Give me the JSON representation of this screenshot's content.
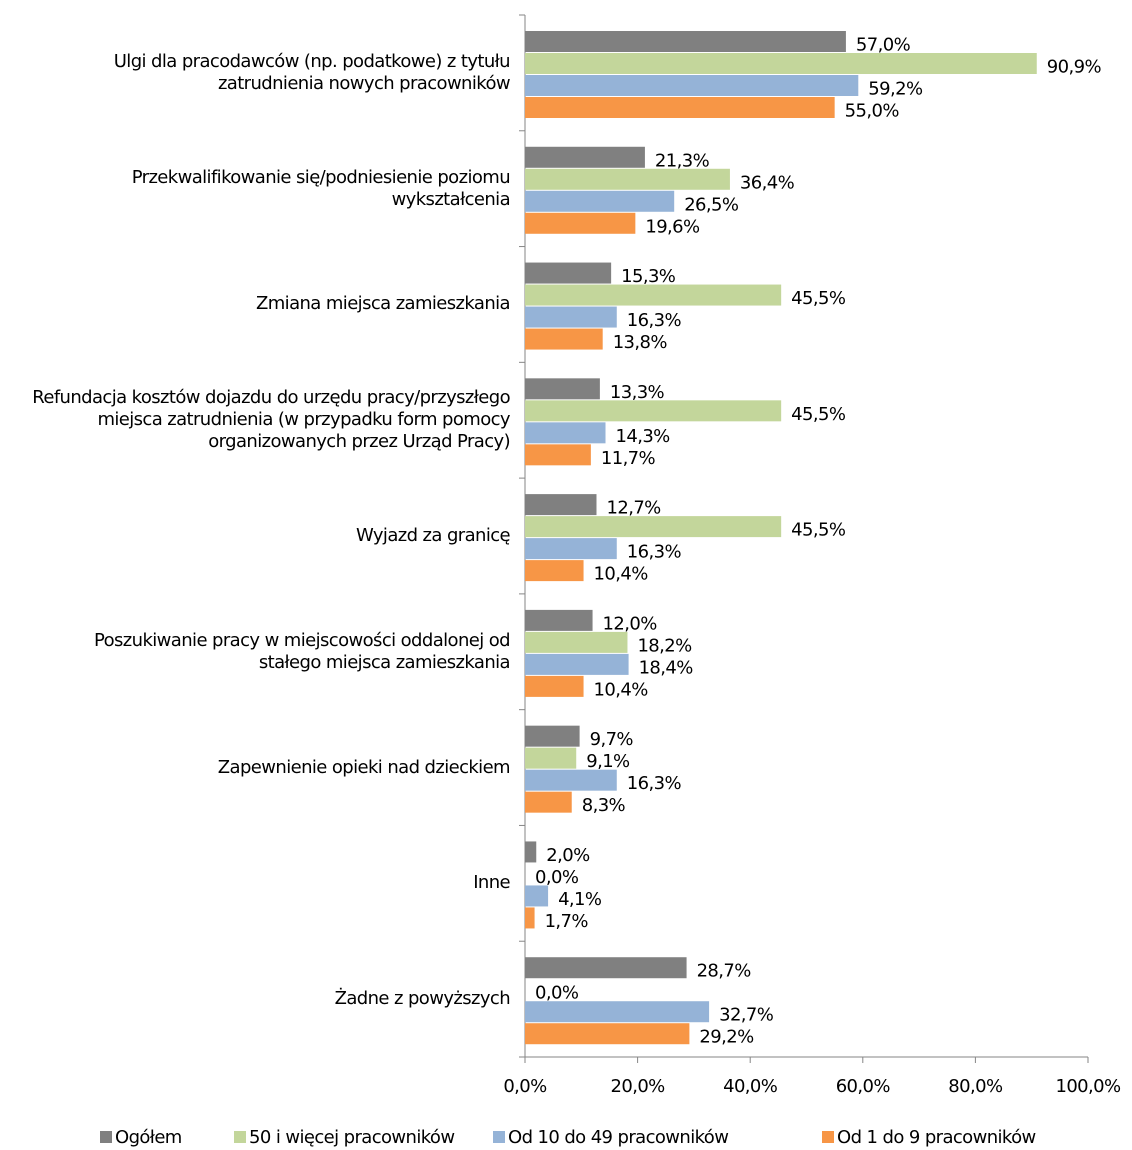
{
  "chart_data": {
    "type": "hbar",
    "categories": [
      "Ulgi dla pracodawców (np. podatkowe) z tytułu zatrudnienia nowych pracowników",
      "Przekwalifikowanie się/podniesienie poziomu wykształcenia",
      "Zmiana miejsca zamieszkania",
      "Refundacja kosztów dojazdu do urzędu pracy/przyszłego miejsca zatrudnienia (w przypadku form pomocy organizowanych przez Urząd Pracy)",
      "Wyjazd za granicę",
      "Poszukiwanie pracy w miejscowości oddalonej od stałego miejsca zamieszkania",
      "Zapewnienie opieki nad dzieckiem",
      "Inne",
      "Żadne z powyższych"
    ],
    "series": [
      {
        "name": "Ogółem",
        "color": "#808080",
        "values": [
          57.0,
          21.3,
          15.3,
          13.3,
          12.7,
          12.0,
          9.7,
          2.0,
          28.7
        ],
        "value_labels": [
          "57,0%",
          "21,3%",
          "15,3%",
          "13,3%",
          "12,7%",
          "12,0%",
          "9,7%",
          "2,0%",
          "28,7%"
        ]
      },
      {
        "name": "50 i więcej pracowników",
        "color": "#c3d69b",
        "values": [
          90.9,
          36.4,
          45.5,
          45.5,
          45.5,
          18.2,
          9.1,
          0.0,
          0.0
        ],
        "value_labels": [
          "90,9%",
          "36,4%",
          "45,5%",
          "45,5%",
          "45,5%",
          "18,2%",
          "9,1%",
          "0,0%",
          "0,0%"
        ]
      },
      {
        "name": "Od 10 do 49 pracowników",
        "color": "#95b3d7",
        "values": [
          59.2,
          26.5,
          16.3,
          14.3,
          16.3,
          18.4,
          16.3,
          4.1,
          32.7
        ],
        "value_labels": [
          "59,2%",
          "26,5%",
          "16,3%",
          "14,3%",
          "16,3%",
          "18,4%",
          "16,3%",
          "4,1%",
          "32,7%"
        ]
      },
      {
        "name": "Od 1 do 9 pracowników",
        "color": "#f79646",
        "values": [
          55.0,
          19.6,
          13.8,
          11.7,
          10.4,
          10.4,
          8.3,
          1.7,
          29.2
        ],
        "value_labels": [
          "55,0%",
          "19,6%",
          "13,8%",
          "11,7%",
          "10,4%",
          "10,4%",
          "8,3%",
          "1,7%",
          "29,2%"
        ]
      }
    ],
    "xlim": [
      0,
      100
    ],
    "xticks": [
      {
        "value": 0,
        "label": "0,0%"
      },
      {
        "value": 20,
        "label": "20,0%"
      },
      {
        "value": 40,
        "label": "40,0%"
      },
      {
        "value": 60,
        "label": "60,0%"
      },
      {
        "value": 80,
        "label": "80,0%"
      },
      {
        "value": 100,
        "label": "100,0%"
      }
    ],
    "legend": "bottom"
  }
}
